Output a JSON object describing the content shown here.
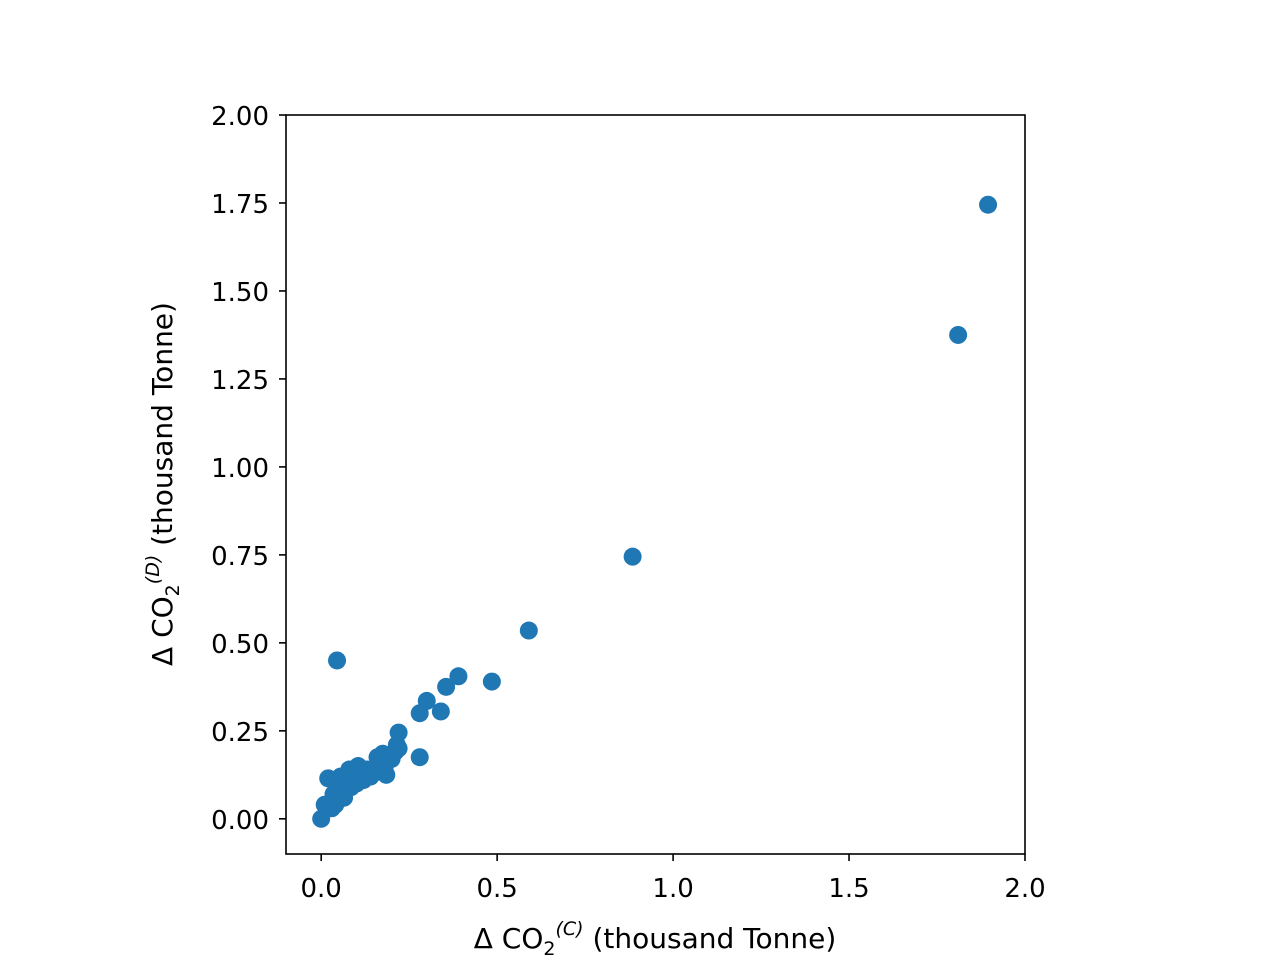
{
  "chart_data": {
    "type": "scatter",
    "title": "",
    "xlabel": {
      "prefix": "Δ CO",
      "sub": "2",
      "sup": "(C)",
      "suffix": " (thousand Tonne)"
    },
    "ylabel": {
      "prefix": "Δ CO",
      "sub": "2",
      "sup": "(D)",
      "suffix": " (thousand Tonne)"
    },
    "xlim": [
      -0.1,
      2.0
    ],
    "ylim": [
      -0.1,
      2.0
    ],
    "xticks": [
      0.0,
      0.5,
      1.0,
      1.5,
      2.0
    ],
    "xtick_labels": [
      "0.0",
      "0.5",
      "1.0",
      "1.5",
      "2.0"
    ],
    "yticks": [
      0.0,
      0.25,
      0.5,
      0.75,
      1.0,
      1.25,
      1.5,
      1.75,
      2.0
    ],
    "ytick_labels": [
      "0.00",
      "0.25",
      "0.50",
      "0.75",
      "1.00",
      "1.25",
      "1.50",
      "1.75",
      "2.00"
    ],
    "grid": false,
    "marker_color": "#1f77b4",
    "series": [
      {
        "points": [
          [
            0.0,
            0.0
          ],
          [
            0.01,
            0.04
          ],
          [
            0.02,
            0.115
          ],
          [
            0.03,
            0.03
          ],
          [
            0.035,
            0.07
          ],
          [
            0.04,
            0.04
          ],
          [
            0.045,
            0.09
          ],
          [
            0.05,
            0.06
          ],
          [
            0.055,
            0.12
          ],
          [
            0.06,
            0.08
          ],
          [
            0.065,
            0.06
          ],
          [
            0.07,
            0.1
          ],
          [
            0.075,
            0.12
          ],
          [
            0.08,
            0.14
          ],
          [
            0.085,
            0.09
          ],
          [
            0.09,
            0.11
          ],
          [
            0.095,
            0.13
          ],
          [
            0.1,
            0.1
          ],
          [
            0.105,
            0.15
          ],
          [
            0.11,
            0.12
          ],
          [
            0.12,
            0.11
          ],
          [
            0.13,
            0.14
          ],
          [
            0.14,
            0.12
          ],
          [
            0.15,
            0.13
          ],
          [
            0.16,
            0.175
          ],
          [
            0.17,
            0.16
          ],
          [
            0.175,
            0.185
          ],
          [
            0.18,
            0.145
          ],
          [
            0.185,
            0.125
          ],
          [
            0.2,
            0.17
          ],
          [
            0.21,
            0.19
          ],
          [
            0.215,
            0.21
          ],
          [
            0.22,
            0.245
          ],
          [
            0.22,
            0.2
          ],
          [
            0.28,
            0.175
          ],
          [
            0.28,
            0.3
          ],
          [
            0.3,
            0.335
          ],
          [
            0.34,
            0.305
          ],
          [
            0.355,
            0.375
          ],
          [
            0.39,
            0.405
          ],
          [
            0.485,
            0.39
          ],
          [
            0.59,
            0.535
          ],
          [
            0.045,
            0.45
          ],
          [
            0.885,
            0.745
          ],
          [
            1.81,
            1.375
          ],
          [
            1.895,
            1.745
          ]
        ]
      }
    ]
  }
}
